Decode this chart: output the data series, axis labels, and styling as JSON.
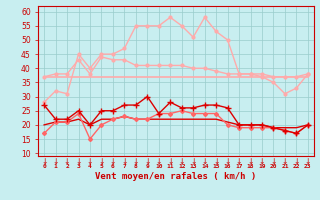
{
  "x": [
    0,
    1,
    2,
    3,
    4,
    5,
    6,
    7,
    8,
    9,
    10,
    11,
    12,
    13,
    14,
    15,
    16,
    17,
    18,
    19,
    20,
    21,
    22,
    23
  ],
  "line_gust_max": [
    28,
    32,
    31,
    45,
    40,
    45,
    45,
    47,
    55,
    55,
    55,
    58,
    55,
    51,
    58,
    53,
    50,
    38,
    38,
    37,
    35,
    31,
    33,
    38
  ],
  "line_gust_avg": [
    37,
    38,
    38,
    43,
    38,
    44,
    43,
    43,
    41,
    41,
    41,
    41,
    41,
    40,
    40,
    39,
    38,
    38,
    38,
    38,
    37,
    37,
    37,
    38
  ],
  "line_gust_flat": [
    37,
    37,
    37,
    37,
    37,
    37,
    37,
    37,
    37,
    37,
    37,
    37,
    37,
    37,
    37,
    37,
    37,
    37,
    37,
    37,
    37,
    37,
    37,
    37
  ],
  "line_wind_max": [
    27,
    22,
    22,
    25,
    20,
    25,
    25,
    27,
    27,
    30,
    24,
    28,
    26,
    26,
    27,
    27,
    26,
    20,
    20,
    20,
    19,
    18,
    17,
    20
  ],
  "line_wind_avg": [
    20,
    21,
    21,
    22,
    20,
    22,
    22,
    23,
    22,
    22,
    22,
    22,
    22,
    22,
    22,
    22,
    21,
    20,
    20,
    20,
    19,
    19,
    19,
    20
  ],
  "line_wind_min": [
    17,
    21,
    21,
    24,
    15,
    20,
    22,
    23,
    22,
    22,
    24,
    24,
    25,
    24,
    24,
    24,
    20,
    19,
    19,
    19,
    19,
    18,
    17,
    20
  ],
  "color_pink_light": "#ffaaaa",
  "color_red_medium": "#ff6666",
  "color_red_dark": "#dd0000",
  "bg_color": "#c8eef0",
  "grid_color": "#99cccc",
  "xlabel": "Vent moyen/en rafales ( km/h )",
  "ylim_min": 9,
  "ylim_max": 62,
  "tick_color": "#cc0000",
  "grid_major_step": 5
}
